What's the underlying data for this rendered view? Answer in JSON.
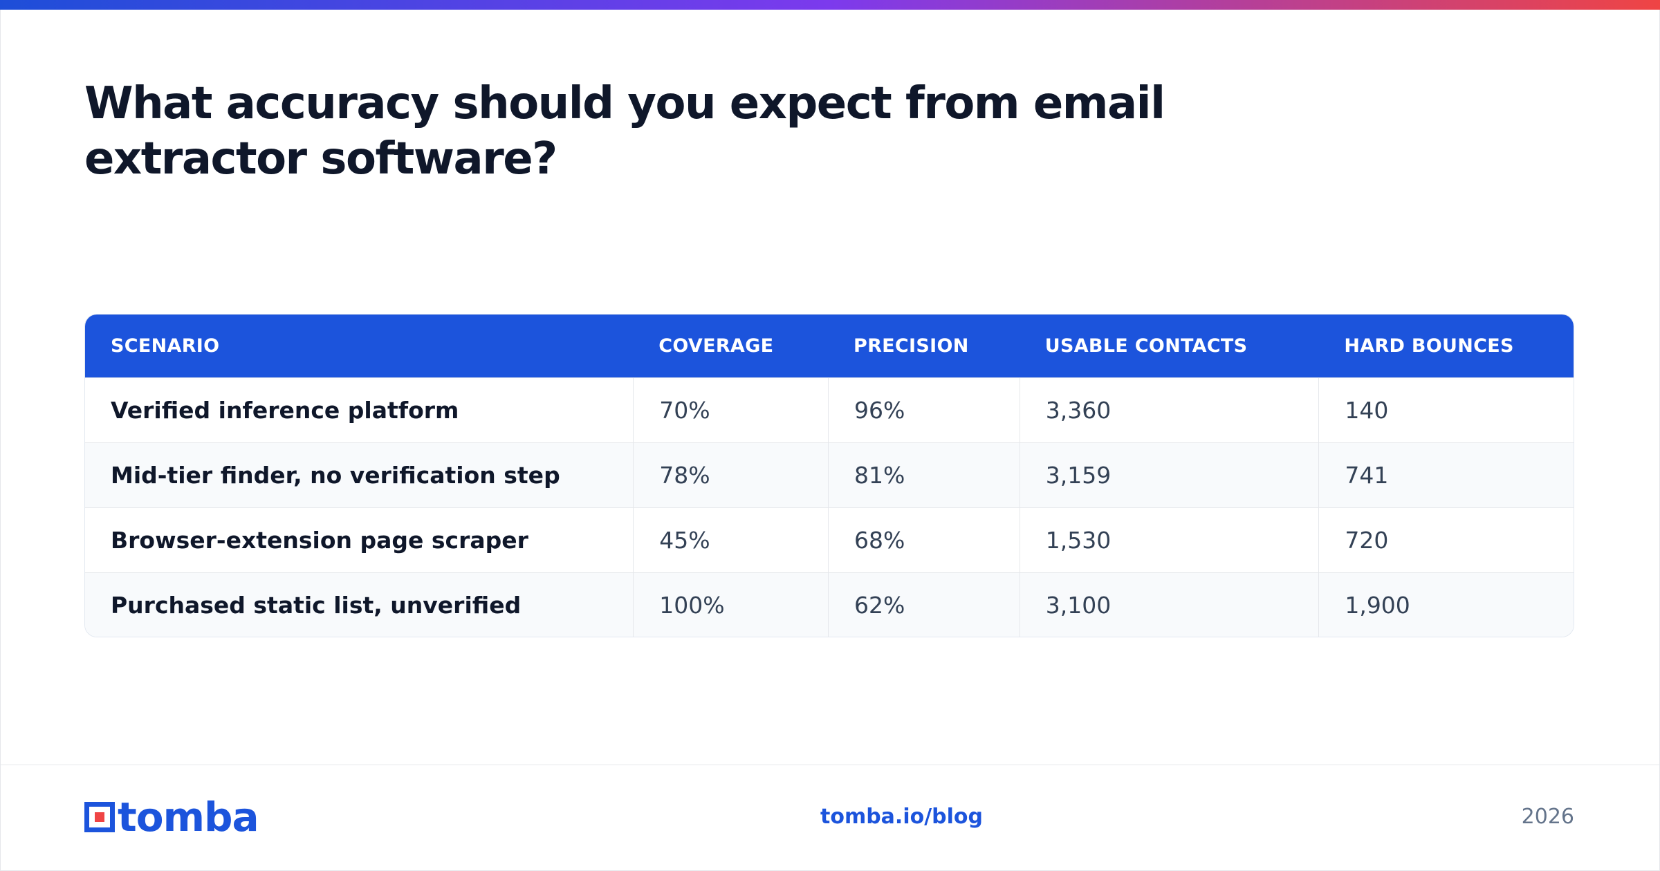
{
  "headline": "What accuracy should you expect from email extractor software?",
  "table": {
    "headers": [
      "SCENARIO",
      "COVERAGE",
      "PRECISION",
      "USABLE CONTACTS",
      "HARD BOUNCES"
    ],
    "rows": [
      [
        "Verified inference platform",
        "70%",
        "96%",
        "3,360",
        "140"
      ],
      [
        "Mid-tier finder, no verification step",
        "78%",
        "81%",
        "3,159",
        "741"
      ],
      [
        "Browser-extension page scraper",
        "45%",
        "68%",
        "1,530",
        "720"
      ],
      [
        "Purchased static list, unverified",
        "100%",
        "62%",
        "3,100",
        "1,900"
      ]
    ]
  },
  "footer": {
    "logo_text": "tomba",
    "link": "tomba.io/blog",
    "year": "2026"
  },
  "colors": {
    "accent": "#1c54dc",
    "logo_dot": "#ef4444",
    "gradient_start": "#1d4ed8",
    "gradient_end": "#ef4444"
  },
  "icons": {
    "logo": "tomba-logo-icon"
  }
}
